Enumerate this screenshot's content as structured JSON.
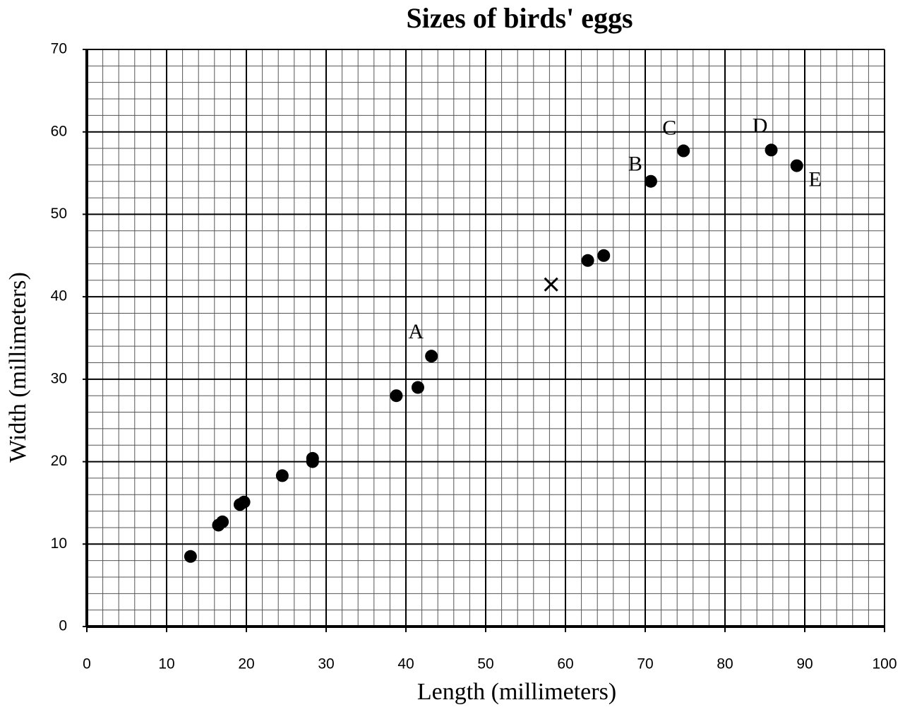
{
  "chart_data": {
    "type": "scatter",
    "title": "Sizes of birds' eggs",
    "x_label": "Length (millimeters)",
    "y_label": "Width (millimeters)",
    "xlim": [
      0,
      100
    ],
    "ylim": [
      0,
      70
    ],
    "xticks": [
      0,
      10,
      20,
      30,
      40,
      50,
      60,
      70,
      80,
      90,
      100
    ],
    "yticks": [
      0,
      10,
      20,
      30,
      40,
      50,
      60,
      70
    ],
    "grid": true,
    "minor_grid_step": 2,
    "series": [
      {
        "marker": "circle",
        "color": "#000000",
        "x": [
          13,
          16.5,
          17,
          19.2,
          19.7,
          24.5,
          28.3,
          28.3,
          38.8,
          41.5,
          43.2,
          62.8,
          64.8,
          70.7,
          74.8,
          85.8,
          89
        ],
        "values": [
          8.5,
          12.3,
          12.7,
          14.8,
          15.1,
          18.3,
          20,
          20.4,
          28,
          29,
          32.8,
          44.4,
          45,
          54,
          57.7,
          57.8,
          55.9
        ],
        "point_labels": [
          null,
          null,
          null,
          null,
          null,
          null,
          null,
          null,
          null,
          null,
          "A",
          null,
          null,
          "B",
          "C",
          "D",
          "E"
        ]
      },
      {
        "marker": "x",
        "color": "#000000",
        "x": [
          58.2
        ],
        "values": [
          41.5
        ]
      }
    ]
  }
}
